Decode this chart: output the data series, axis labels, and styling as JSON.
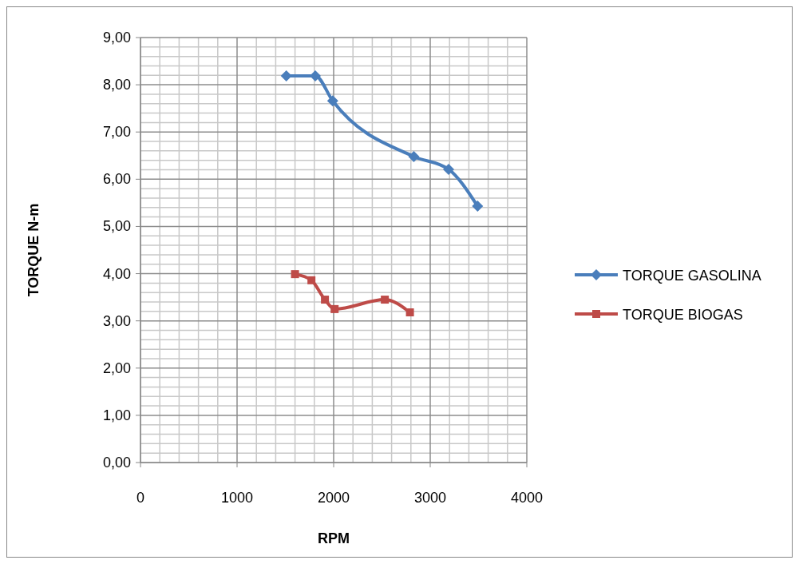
{
  "chart_data": {
    "type": "line",
    "xlabel": "RPM",
    "ylabel": "TORQUE N-m",
    "series": [
      {
        "name": "TORQUE GASOLINA",
        "color": "#4a7ebb",
        "x": [
          1510,
          1810,
          1990,
          2830,
          3190,
          3490
        ],
        "values": [
          8.19,
          8.19,
          7.66,
          6.48,
          6.21,
          5.43
        ],
        "marker": "diamond"
      },
      {
        "name": "TORQUE BIOGAS",
        "color": "#be4b48",
        "x": [
          1600,
          1770,
          1910,
          2010,
          2530,
          2790
        ],
        "values": [
          3.99,
          3.86,
          3.45,
          3.25,
          3.45,
          3.18
        ],
        "marker": "square"
      }
    ],
    "xlim": [
      0,
      4000
    ],
    "xticks": [
      0,
      1000,
      2000,
      3000,
      4000
    ],
    "ylim": [
      0,
      9
    ],
    "yticks": [
      {
        "value": 0,
        "label": "0,00"
      },
      {
        "value": 1,
        "label": "1,00"
      },
      {
        "value": 2,
        "label": "2,00"
      },
      {
        "value": 3,
        "label": "3,00"
      },
      {
        "value": 4,
        "label": "4,00"
      },
      {
        "value": 5,
        "label": "5,00"
      },
      {
        "value": 6,
        "label": "6,00"
      },
      {
        "value": 7,
        "label": "7,00"
      },
      {
        "value": 8,
        "label": "8,00"
      },
      {
        "value": 9,
        "label": "9,00"
      }
    ],
    "grid": true,
    "legend": "right"
  }
}
